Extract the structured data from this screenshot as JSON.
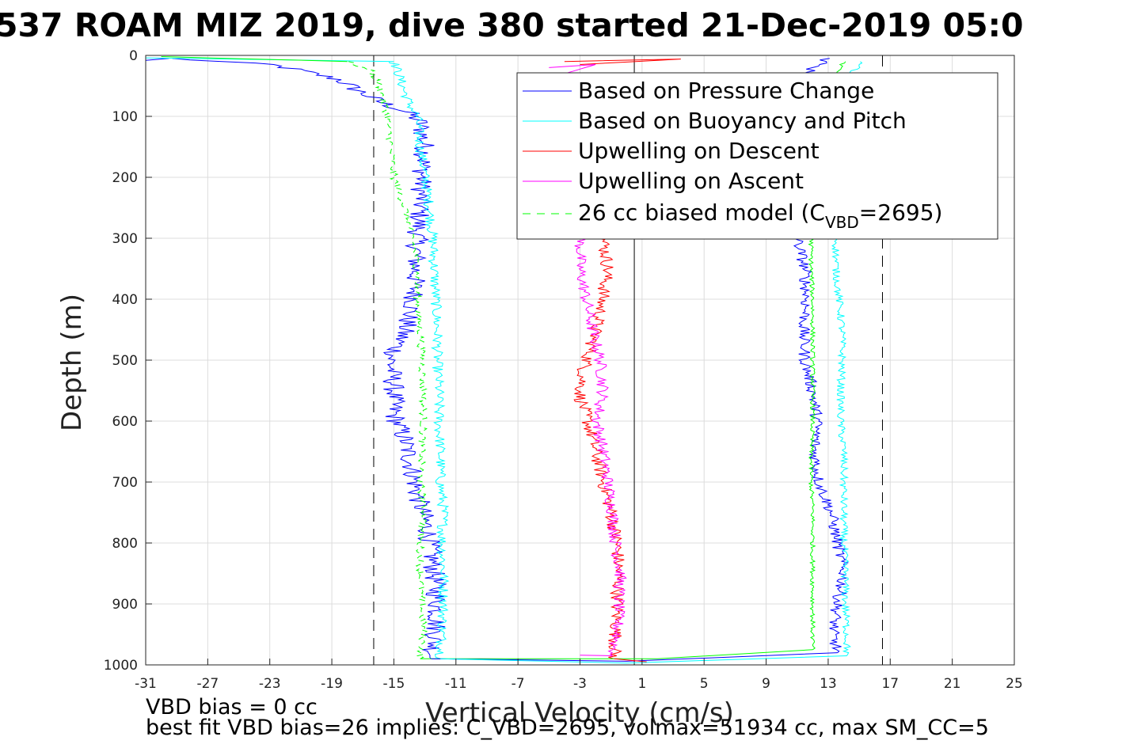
{
  "chart_data": {
    "type": "line",
    "title": "537 ROAM MIZ 2019, dive 380 started 21-Dec-2019 05:0",
    "xlabel": "Vertical Velocity (cm/s)",
    "ylabel": "Depth (m)",
    "xlim": [
      -31,
      25
    ],
    "ylim": [
      0,
      1000
    ],
    "y_reversed": true,
    "grid": true,
    "x_ticks": [
      -31,
      -27,
      -23,
      -19,
      -15,
      -11,
      -7,
      -3,
      1,
      5,
      9,
      13,
      17,
      21,
      25
    ],
    "y_ticks": [
      0,
      100,
      200,
      300,
      400,
      500,
      600,
      700,
      800,
      900,
      1000
    ],
    "reference_lines": [
      {
        "x": -16.3,
        "style": "dashed",
        "color": "#000000"
      },
      {
        "x": 0.5,
        "style": "solid",
        "color": "#000000"
      },
      {
        "x": 16.5,
        "style": "dashed",
        "color": "#000000"
      }
    ],
    "legend_placement": "top-right",
    "legend": [
      {
        "label": "Based on Pressure Change",
        "color": "#0000ff",
        "style": "solid"
      },
      {
        "label": "Based on Buoyancy and Pitch",
        "color": "#00ffff",
        "style": "solid"
      },
      {
        "label": "Upwelling on Descent",
        "color": "#ff0000",
        "style": "solid"
      },
      {
        "label": "Upwelling on Ascent",
        "color": "#ff00ff",
        "style": "solid"
      },
      {
        "label_main": "26 cc biased model (C",
        "label_sub": "VBD",
        "label_end": "=2695)",
        "color": "#00ff00",
        "style": "dashed"
      }
    ],
    "series": [
      {
        "name": "Based on Pressure Change",
        "color": "#0000ff",
        "style": "solid",
        "noise": 0.7,
        "points": [
          [
            -29.5,
            5
          ],
          [
            -23,
            15
          ],
          [
            -21,
            25
          ],
          [
            -18.5,
            40
          ],
          [
            -17.5,
            55
          ],
          [
            -16,
            75
          ],
          [
            -14,
            95
          ],
          [
            -13.3,
            110
          ],
          [
            -13,
            150
          ],
          [
            -13.2,
            200
          ],
          [
            -13.3,
            250
          ],
          [
            -13.5,
            300
          ],
          [
            -13.6,
            350
          ],
          [
            -13.7,
            400
          ],
          [
            -14.3,
            450
          ],
          [
            -15.2,
            500
          ],
          [
            -15,
            550
          ],
          [
            -15,
            590
          ],
          [
            -14.3,
            630
          ],
          [
            -13.8,
            680
          ],
          [
            -13.5,
            720
          ],
          [
            -12.8,
            780
          ],
          [
            -12.4,
            850
          ],
          [
            -12.2,
            900
          ],
          [
            -12.3,
            950
          ],
          [
            -12.6,
            990
          ]
        ]
      },
      {
        "name": "Based on Buoyancy and Pitch",
        "color": "#00ffff",
        "style": "solid",
        "noise": 0.35,
        "points": [
          [
            -15,
            10
          ],
          [
            -14.7,
            30
          ],
          [
            -14.3,
            60
          ],
          [
            -14,
            80
          ],
          [
            -13.5,
            100
          ],
          [
            -13.3,
            150
          ],
          [
            -13,
            200
          ],
          [
            -12.7,
            250
          ],
          [
            -12.5,
            300
          ],
          [
            -12.4,
            350
          ],
          [
            -12.3,
            400
          ],
          [
            -12.2,
            450
          ],
          [
            -12.2,
            500
          ],
          [
            -12.1,
            550
          ],
          [
            -12.1,
            600
          ],
          [
            -12,
            650
          ],
          [
            -12,
            700
          ],
          [
            -11.8,
            750
          ],
          [
            -11.9,
            800
          ],
          [
            -11.8,
            850
          ],
          [
            -11.8,
            900
          ],
          [
            -11.9,
            950
          ],
          [
            -12,
            990
          ]
        ]
      },
      {
        "name": "Upwelling on Descent",
        "color": "#ff0000",
        "style": "solid",
        "noise": 0.45,
        "points": [
          [
            -1.5,
            300
          ],
          [
            -1.2,
            350
          ],
          [
            -1.5,
            390
          ],
          [
            -1.8,
            430
          ],
          [
            -2.3,
            480
          ],
          [
            -2.8,
            520
          ],
          [
            -3,
            560
          ],
          [
            -2.5,
            600
          ],
          [
            -2,
            650
          ],
          [
            -1.5,
            700
          ],
          [
            -1,
            750
          ],
          [
            -0.6,
            800
          ],
          [
            -0.5,
            850
          ],
          [
            -0.6,
            900
          ],
          [
            -0.7,
            950
          ],
          [
            -0.8,
            990
          ]
        ]
      },
      {
        "name": "Upwelling on Ascent",
        "color": "#ff00ff",
        "style": "solid",
        "noise": 0.4,
        "points": [
          [
            -3,
            300
          ],
          [
            -3,
            350
          ],
          [
            -2.6,
            400
          ],
          [
            -2.2,
            450
          ],
          [
            -1.7,
            500
          ],
          [
            -1.5,
            550
          ],
          [
            -1.9,
            600
          ],
          [
            -1.5,
            650
          ],
          [
            -1.2,
            700
          ],
          [
            -0.9,
            750
          ],
          [
            -0.7,
            800
          ],
          [
            -0.4,
            850
          ],
          [
            -0.5,
            900
          ],
          [
            -0.6,
            950
          ],
          [
            -0.9,
            985
          ]
        ]
      },
      {
        "name": "26 cc biased model (C_VBD=2695)",
        "color": "#00ff00",
        "style": "dashed",
        "noise": 0.25,
        "points": [
          [
            -18,
            10
          ],
          [
            -16.5,
            25
          ],
          [
            -16,
            45
          ],
          [
            -15.7,
            70
          ],
          [
            -15.4,
            100
          ],
          [
            -15.2,
            150
          ],
          [
            -15,
            200
          ],
          [
            -14.3,
            250
          ],
          [
            -13.8,
            300
          ],
          [
            -13.5,
            350
          ],
          [
            -13.5,
            400
          ],
          [
            -13.3,
            450
          ],
          [
            -13.2,
            500
          ],
          [
            -13.1,
            550
          ],
          [
            -13.1,
            600
          ],
          [
            -13.2,
            650
          ],
          [
            -13.3,
            700
          ],
          [
            -13,
            750
          ],
          [
            -13.3,
            800
          ],
          [
            -13.3,
            850
          ],
          [
            -13.2,
            900
          ],
          [
            -13.1,
            950
          ],
          [
            -13.3,
            990
          ]
        ]
      }
    ],
    "ascent_series": [
      {
        "name": "Based on Pressure Change",
        "color": "#0000ff",
        "noise": 0.4,
        "points": [
          [
            13,
            5
          ],
          [
            11.5,
            30
          ],
          [
            10.8,
            100
          ],
          [
            10.8,
            200
          ],
          [
            11,
            300
          ],
          [
            11.5,
            350
          ],
          [
            11.6,
            400
          ],
          [
            11.4,
            450
          ],
          [
            11.5,
            500
          ],
          [
            12,
            550
          ],
          [
            12.3,
            600
          ],
          [
            12.1,
            650
          ],
          [
            12.4,
            700
          ],
          [
            13.2,
            750
          ],
          [
            13.6,
            800
          ],
          [
            14,
            850
          ],
          [
            13.6,
            900
          ],
          [
            13.3,
            950
          ],
          [
            13.6,
            980
          ]
        ]
      },
      {
        "name": "Based on Buoyancy and Pitch",
        "color": "#00ffff",
        "noise": 0.25,
        "points": [
          [
            15,
            10
          ],
          [
            14.2,
            50
          ],
          [
            14,
            150
          ],
          [
            13.8,
            250
          ],
          [
            13.5,
            310
          ],
          [
            13.5,
            350
          ],
          [
            13.7,
            400
          ],
          [
            13.9,
            450
          ],
          [
            13.9,
            500
          ],
          [
            13.8,
            550
          ],
          [
            13.8,
            600
          ],
          [
            14,
            650
          ],
          [
            14,
            700
          ],
          [
            14,
            750
          ],
          [
            14,
            800
          ],
          [
            14.1,
            850
          ],
          [
            14.1,
            900
          ],
          [
            14.2,
            950
          ],
          [
            14.2,
            985
          ]
        ]
      },
      {
        "name": "26 cc biased model (C_VBD=2695)",
        "color": "#00ff00",
        "noise": 0.15,
        "points": [
          [
            14,
            10
          ],
          [
            12.8,
            60
          ],
          [
            12.3,
            150
          ],
          [
            12,
            250
          ],
          [
            11.9,
            300
          ],
          [
            11.9,
            350
          ],
          [
            12,
            400
          ],
          [
            12,
            450
          ],
          [
            12,
            500
          ],
          [
            12,
            550
          ],
          [
            12,
            600
          ],
          [
            11.9,
            650
          ],
          [
            11.9,
            700
          ],
          [
            12,
            750
          ],
          [
            12,
            800
          ],
          [
            12,
            850
          ],
          [
            12,
            900
          ],
          [
            12,
            950
          ],
          [
            12,
            975
          ]
        ]
      }
    ],
    "surface_lines": [
      {
        "color": "#00ffff",
        "points": [
          [
            -31,
            0
          ],
          [
            25,
            0
          ]
        ]
      },
      {
        "color": "#ff0000",
        "points": [
          [
            -2,
            0
          ],
          [
            2,
            0
          ]
        ]
      },
      {
        "color": "#0000ff",
        "points": [
          [
            -31,
            8
          ],
          [
            -29.5,
            5
          ]
        ]
      },
      {
        "color": "#00ffff",
        "points": [
          [
            -31,
            4
          ],
          [
            -15,
            10
          ]
        ]
      },
      {
        "color": "#00ff00",
        "points": [
          [
            -30,
            2
          ],
          [
            -18,
            10
          ]
        ]
      }
    ],
    "bottom_lines": [
      {
        "color": "#00ff00",
        "points": [
          [
            -13.3,
            990
          ],
          [
            2,
            990
          ],
          [
            12,
            975
          ]
        ]
      },
      {
        "color": "#0000ff",
        "points": [
          [
            -12.6,
            990
          ],
          [
            0,
            994
          ],
          [
            13.6,
            980
          ]
        ]
      },
      {
        "color": "#00ffff",
        "points": [
          [
            -12,
            990
          ],
          [
            0,
            997
          ],
          [
            14.2,
            985
          ]
        ]
      },
      {
        "color": "#ff0000",
        "points": [
          [
            -0.8,
            990
          ],
          [
            1.3,
            995
          ]
        ]
      },
      {
        "color": "#ff00ff",
        "points": [
          [
            -0.9,
            985
          ],
          [
            -3,
            984
          ]
        ]
      }
    ],
    "surface_spikes": [
      {
        "color": "#ff0000",
        "points": [
          [
            -4,
            10
          ],
          [
            3.5,
            6
          ],
          [
            -3,
            15
          ]
        ]
      },
      {
        "color": "#ff00ff",
        "points": [
          [
            -5,
            20
          ],
          [
            -2,
            15
          ],
          [
            -4,
            30
          ]
        ]
      }
    ]
  },
  "footer": {
    "line1": "VBD bias = 0 cc",
    "line2": "best fit VBD bias=26 implies: C_VBD=2695, volmax=51934 cc, max SM_CC=5"
  }
}
